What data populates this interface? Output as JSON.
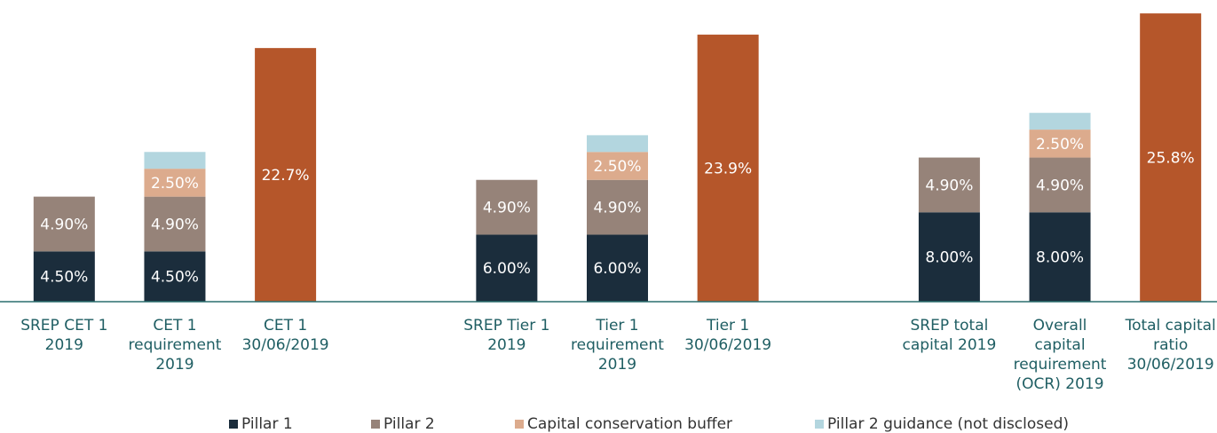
{
  "chart_data": {
    "type": "bar",
    "stacked": true,
    "categories": [
      [
        "SREP CET 1",
        "2019"
      ],
      [
        "CET 1",
        "requirement",
        "2019"
      ],
      [
        "CET 1",
        "30/06/2019"
      ],
      null,
      [
        "SREP Tier 1",
        "2019"
      ],
      [
        "Tier 1",
        "requirement",
        "2019"
      ],
      [
        "Tier 1",
        "30/06/2019"
      ],
      null,
      [
        "SREP total",
        "capital 2019"
      ],
      [
        "Overall",
        "capital",
        "requirement",
        "(OCR) 2019"
      ],
      [
        "Total capital",
        "ratio",
        "30/06/2019"
      ]
    ],
    "series": [
      {
        "name": "Pillar 1",
        "color": "#1b2d3c",
        "values": [
          4.5,
          4.5,
          null,
          null,
          6,
          6,
          null,
          null,
          8,
          8,
          null
        ],
        "value_labels": [
          "4.50%",
          "4.50%",
          null,
          null,
          "6.00%",
          "6.00%",
          null,
          null,
          "8.00%",
          "8.00%",
          null
        ]
      },
      {
        "name": "Pillar 2",
        "color": "#968379",
        "values": [
          4.9,
          4.9,
          null,
          null,
          4.9,
          4.9,
          null,
          null,
          4.9,
          4.9,
          null
        ],
        "value_labels": [
          "4.90%",
          "4.90%",
          null,
          null,
          "4.90%",
          "4.90%",
          null,
          null,
          "4.90%",
          "4.90%",
          null
        ]
      },
      {
        "name": "Capital conservation buffer",
        "color": "#dcab8d",
        "values": [
          null,
          2.5,
          null,
          null,
          null,
          2.5,
          null,
          null,
          null,
          2.5,
          null
        ],
        "value_labels": [
          null,
          "2.50%",
          null,
          null,
          null,
          "2.50%",
          null,
          null,
          null,
          "2.50%",
          null
        ]
      },
      {
        "name": "Pillar 2 guidance (not disclosed)",
        "color": "#b3d6df",
        "values": [
          null,
          1.5,
          null,
          null,
          null,
          1.5,
          null,
          null,
          null,
          1.5,
          null
        ]
      },
      {
        "color": "#b5562a",
        "values": [
          null,
          null,
          22.7,
          null,
          null,
          null,
          23.9,
          null,
          null,
          null,
          25.8
        ],
        "value_labels": [
          null,
          null,
          "22.7%",
          null,
          null,
          null,
          "23.9%",
          null,
          null,
          null,
          "25.8%"
        ]
      }
    ],
    "ylim": [
      0,
      27
    ]
  }
}
